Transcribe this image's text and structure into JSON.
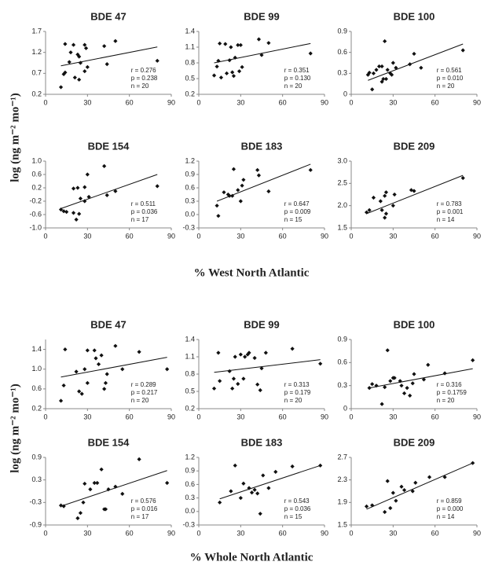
{
  "figure": {
    "ylabel": "log (ng m⁻² mo⁻¹)",
    "xlabels": [
      "% West North Atlantic",
      "% Whole North Atlantic"
    ]
  },
  "chart_data": [
    {
      "type": "scatter",
      "title": "BDE 47",
      "xlim": [
        0,
        90
      ],
      "xticks": [
        0,
        30,
        60,
        90
      ],
      "ylim": [
        0.2,
        1.7
      ],
      "yticks": [
        0.2,
        0.7,
        1.2,
        1.7
      ],
      "x": [
        11,
        13,
        14,
        14,
        17,
        18,
        20,
        21,
        23,
        24,
        24,
        25,
        28,
        28,
        29,
        30,
        42,
        44,
        50,
        80
      ],
      "values": [
        0.37,
        0.68,
        0.72,
        1.4,
        0.97,
        1.2,
        1.38,
        0.6,
        1.15,
        1.1,
        0.55,
        0.95,
        1.38,
        0.75,
        1.3,
        0.85,
        1.35,
        0.92,
        1.47,
        1.0
      ],
      "trendline": {
        "x": [
          11,
          80
        ],
        "y": [
          0.88,
          1.33
        ]
      },
      "annotations": [
        "r = 0.276",
        "p = 0.238",
        "n = 20"
      ]
    },
    {
      "type": "scatter",
      "title": "BDE 99",
      "xlim": [
        0,
        90
      ],
      "xticks": [
        0,
        30,
        60,
        90
      ],
      "ylim": [
        0.2,
        1.4
      ],
      "yticks": [
        0.2,
        0.5,
        0.8,
        1.1,
        1.4
      ],
      "x": [
        11,
        13,
        14,
        15,
        16,
        19,
        20,
        22,
        23,
        24,
        25,
        26,
        28,
        29,
        30,
        31,
        43,
        45,
        50,
        80
      ],
      "values": [
        0.56,
        0.73,
        0.84,
        1.17,
        0.52,
        1.16,
        0.6,
        0.85,
        1.1,
        0.62,
        0.55,
        0.9,
        1.14,
        0.64,
        1.14,
        0.72,
        1.25,
        0.95,
        1.18,
        0.98
      ],
      "trendline": {
        "x": [
          11,
          80
        ],
        "y": [
          0.8,
          1.17
        ]
      },
      "annotations": [
        "r = 0.351",
        "p = 0.130",
        "n = 20"
      ]
    },
    {
      "type": "scatter",
      "title": "BDE 100",
      "xlim": [
        0,
        90
      ],
      "xticks": [
        0,
        30,
        60,
        90
      ],
      "ylim": [
        0,
        0.9
      ],
      "yticks": [
        0,
        0.3,
        0.6,
        0.9
      ],
      "x": [
        12,
        13,
        15,
        16,
        18,
        20,
        22,
        22,
        23,
        24,
        25,
        26,
        28,
        29,
        30,
        32,
        42,
        45,
        50,
        80
      ],
      "values": [
        0.28,
        0.31,
        0.07,
        0.3,
        0.35,
        0.4,
        0.18,
        0.4,
        0.22,
        0.76,
        0.22,
        0.35,
        0.3,
        0.28,
        0.45,
        0.38,
        0.43,
        0.58,
        0.38,
        0.63
      ],
      "trendline": {
        "x": [
          12,
          80
        ],
        "y": [
          0.2,
          0.72
        ]
      },
      "annotations": [
        "r = 0.561",
        "p = 0.010",
        "n = 20"
      ]
    },
    {
      "type": "scatter",
      "title": "BDE 154",
      "xlim": [
        0,
        90
      ],
      "xticks": [
        0,
        30,
        60,
        90
      ],
      "ylim": [
        -1,
        1
      ],
      "yticks": [
        {
          "value": -1,
          "label": "-1.0"
        },
        -0.6,
        -0.2,
        0.2,
        0.6,
        {
          "value": 1,
          "label": "1.0"
        }
      ],
      "x": [
        11,
        13,
        15,
        20,
        20,
        22,
        23,
        24,
        25,
        28,
        28,
        30,
        31,
        42,
        44,
        50,
        80
      ],
      "values": [
        -0.45,
        -0.5,
        -0.52,
        0.18,
        -0.55,
        -0.75,
        0.2,
        -0.58,
        -0.12,
        0.22,
        -0.2,
        0.6,
        -0.07,
        0.85,
        -0.02,
        0.1,
        0.25
      ],
      "trendline": {
        "x": [
          11,
          80
        ],
        "y": [
          -0.42,
          0.6
        ]
      },
      "annotations": [
        "r = 0.511",
        "p = 0.036",
        "n = 17"
      ]
    },
    {
      "type": "scatter",
      "title": "BDE 183",
      "xlim": [
        0,
        90
      ],
      "xticks": [
        0,
        30,
        60,
        90
      ],
      "ylim": [
        -0.3,
        1.2
      ],
      "yticks": [
        -0.3,
        {
          "value": 0,
          "label": "0.0"
        },
        0.3,
        0.6,
        0.9,
        1.2
      ],
      "x": [
        13,
        14,
        18,
        21,
        22,
        24,
        25,
        28,
        30,
        31,
        32,
        42,
        43,
        50,
        80
      ],
      "values": [
        0.2,
        -0.03,
        0.5,
        0.45,
        0.42,
        0.42,
        1.02,
        0.55,
        0.3,
        0.65,
        0.78,
        1.0,
        0.88,
        0.52,
        1.0
      ],
      "trendline": {
        "x": [
          13,
          80
        ],
        "y": [
          0.3,
          1.13
        ]
      },
      "annotations": [
        "r = 0.647",
        "p = 0.009",
        "n = 15"
      ]
    },
    {
      "type": "scatter",
      "title": "BDE 209",
      "xlim": [
        0,
        90
      ],
      "xticks": [
        0,
        30,
        60,
        90
      ],
      "ylim": [
        1.5,
        3
      ],
      "yticks": [
        1.5,
        {
          "value": 2,
          "label": "2.0"
        },
        2.5,
        {
          "value": 3,
          "label": "3.0"
        }
      ],
      "x": [
        11,
        13,
        16,
        21,
        22,
        24,
        24,
        25,
        25,
        30,
        31,
        43,
        45,
        80
      ],
      "values": [
        1.85,
        1.9,
        2.18,
        2.1,
        1.9,
        2.22,
        1.73,
        2.3,
        1.82,
        2.0,
        2.25,
        2.35,
        2.33,
        2.62
      ],
      "trendline": {
        "x": [
          11,
          80
        ],
        "y": [
          1.82,
          2.68
        ]
      },
      "annotations": [
        "r = 0.783",
        "p = 0.001",
        "n = 14"
      ]
    },
    {
      "type": "scatter",
      "title": "BDE 47",
      "xlim": [
        0,
        90
      ],
      "xticks": [
        0,
        30,
        60,
        90
      ],
      "ylim": [
        0.2,
        1.6
      ],
      "yticks": [
        0.2,
        0.6,
        {
          "value": 1,
          "label": "1.0"
        },
        1.4
      ],
      "x": [
        11,
        13,
        14,
        22,
        24,
        26,
        28,
        30,
        30,
        35,
        36,
        38,
        40,
        42,
        43,
        44,
        50,
        55,
        67,
        87
      ],
      "values": [
        0.36,
        0.67,
        1.4,
        0.95,
        0.55,
        0.5,
        1.0,
        1.38,
        0.72,
        1.38,
        1.22,
        1.1,
        1.28,
        0.6,
        0.72,
        0.9,
        1.47,
        1.0,
        1.35,
        1.0
      ],
      "trendline": {
        "x": [
          11,
          87
        ],
        "y": [
          0.84,
          1.24
        ]
      },
      "annotations": [
        "r = 0.289",
        "p = 0.217",
        "n = 20"
      ]
    },
    {
      "type": "scatter",
      "title": "BDE 99",
      "xlim": [
        0,
        90
      ],
      "xticks": [
        0,
        30,
        60,
        90
      ],
      "ylim": [
        0.2,
        1.4
      ],
      "yticks": [
        0.2,
        0.5,
        0.8,
        1.1,
        1.4
      ],
      "x": [
        11,
        14,
        15,
        22,
        24,
        25,
        26,
        28,
        30,
        32,
        33,
        35,
        36,
        40,
        42,
        44,
        45,
        48,
        67,
        87
      ],
      "values": [
        0.55,
        1.17,
        0.68,
        0.85,
        0.55,
        0.72,
        1.1,
        0.63,
        1.14,
        0.72,
        1.1,
        1.14,
        1.17,
        1.08,
        0.62,
        0.52,
        0.9,
        1.17,
        1.24,
        0.98
      ],
      "trendline": {
        "x": [
          11,
          87
        ],
        "y": [
          0.83,
          1.05
        ]
      },
      "annotations": [
        "r = 0.313",
        "p = 0.179",
        "n = 20"
      ]
    },
    {
      "type": "scatter",
      "title": "BDE 100",
      "xlim": [
        0,
        90
      ],
      "xticks": [
        0,
        30,
        60,
        90
      ],
      "ylim": [
        0,
        0.9
      ],
      "yticks": [
        0,
        0.3,
        0.6,
        0.9
      ],
      "x": [
        13,
        15,
        18,
        22,
        24,
        26,
        28,
        30,
        31,
        35,
        36,
        38,
        40,
        42,
        44,
        45,
        52,
        55,
        67,
        87
      ],
      "values": [
        0.27,
        0.32,
        0.3,
        0.06,
        0.28,
        0.76,
        0.36,
        0.4,
        0.4,
        0.36,
        0.3,
        0.2,
        0.27,
        0.17,
        0.33,
        0.45,
        0.38,
        0.57,
        0.46,
        0.63
      ],
      "trendline": {
        "x": [
          13,
          87
        ],
        "y": [
          0.27,
          0.52
        ]
      },
      "annotations": [
        "r = 0.316",
        "p = 0.1759",
        "n = 20"
      ]
    },
    {
      "type": "scatter",
      "title": "BDE 154",
      "xlim": [
        0,
        90
      ],
      "xticks": [
        0,
        30,
        60,
        90
      ],
      "ylim": [
        -0.9,
        0.9
      ],
      "yticks": [
        -0.9,
        -0.3,
        0.3,
        0.9
      ],
      "x": [
        11,
        13,
        23,
        25,
        27,
        28,
        32,
        35,
        37,
        40,
        42,
        43,
        45,
        50,
        55,
        67,
        87
      ],
      "values": [
        -0.38,
        -0.4,
        -0.72,
        -0.58,
        -0.3,
        0.2,
        0.05,
        0.22,
        0.22,
        0.58,
        -0.48,
        -0.48,
        0.05,
        0.12,
        -0.07,
        0.85,
        0.22
      ],
      "trendline": {
        "x": [
          11,
          87
        ],
        "y": [
          -0.4,
          0.55
        ]
      },
      "annotations": [
        "r = 0.576",
        "p = 0.016",
        "n = 17"
      ]
    },
    {
      "type": "scatter",
      "title": "BDE 183",
      "xlim": [
        0,
        90
      ],
      "xticks": [
        0,
        30,
        60,
        90
      ],
      "ylim": [
        -0.3,
        1.2
      ],
      "yticks": [
        -0.3,
        {
          "value": 0,
          "label": "0.0"
        },
        0.3,
        0.6,
        0.9,
        1.2
      ],
      "x": [
        15,
        23,
        26,
        30,
        32,
        36,
        38,
        40,
        42,
        44,
        46,
        50,
        55,
        67,
        87
      ],
      "values": [
        0.2,
        0.45,
        1.02,
        0.3,
        0.62,
        0.52,
        0.42,
        0.48,
        0.4,
        -0.05,
        0.8,
        0.52,
        0.88,
        1.0,
        1.02
      ],
      "trendline": {
        "x": [
          15,
          87
        ],
        "y": [
          0.28,
          1.02
        ]
      },
      "annotations": [
        "r = 0.543",
        "p = 0.036",
        "n = 15"
      ]
    },
    {
      "type": "scatter",
      "title": "BDE 209",
      "xlim": [
        0,
        90
      ],
      "xticks": [
        0,
        30,
        60,
        90
      ],
      "ylim": [
        1.5,
        2.7
      ],
      "yticks": [
        1.5,
        1.9,
        2.3,
        2.7
      ],
      "x": [
        11,
        15,
        24,
        26,
        28,
        30,
        32,
        36,
        38,
        44,
        46,
        56,
        67,
        87
      ],
      "values": [
        1.83,
        1.85,
        1.73,
        2.28,
        1.8,
        2.07,
        1.93,
        2.18,
        2.12,
        2.1,
        2.25,
        2.35,
        2.35,
        2.6
      ],
      "trendline": {
        "x": [
          11,
          87
        ],
        "y": [
          1.78,
          2.6
        ]
      },
      "annotations": [
        "r = 0.859",
        "p = 0.000",
        "n = 14"
      ]
    }
  ]
}
